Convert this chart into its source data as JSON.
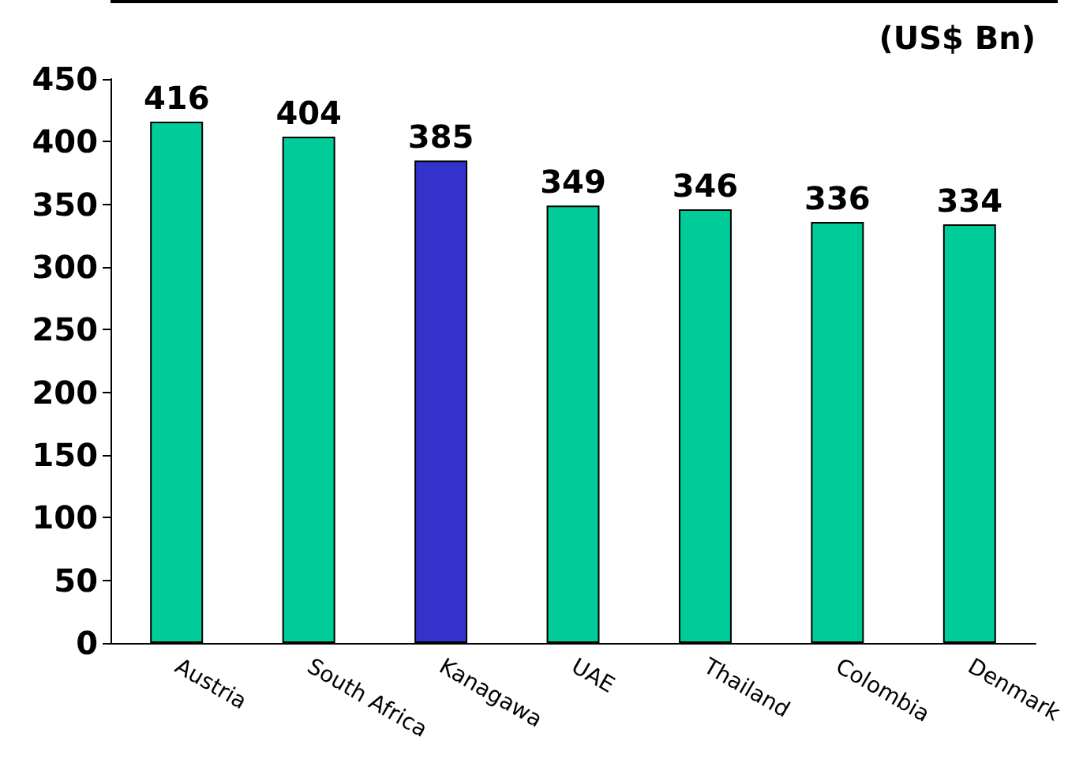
{
  "chart_data": {
    "type": "bar",
    "categories": [
      "Austria",
      "South Africa",
      "Kanagawa",
      "UAE",
      "Thailand",
      "Colombia",
      "Denmark"
    ],
    "values": [
      416,
      404,
      385,
      349,
      346,
      336,
      334
    ],
    "colors": [
      "#00cc99",
      "#00cc99",
      "#3333cc",
      "#00cc99",
      "#00cc99",
      "#00cc99",
      "#00cc99"
    ],
    "ylim": [
      0,
      450
    ],
    "yticks": [
      0,
      50,
      100,
      150,
      200,
      250,
      300,
      350,
      400,
      450
    ],
    "annotations": [
      "(US$ Bn)"
    ],
    "data_labels": true,
    "grid": false
  }
}
